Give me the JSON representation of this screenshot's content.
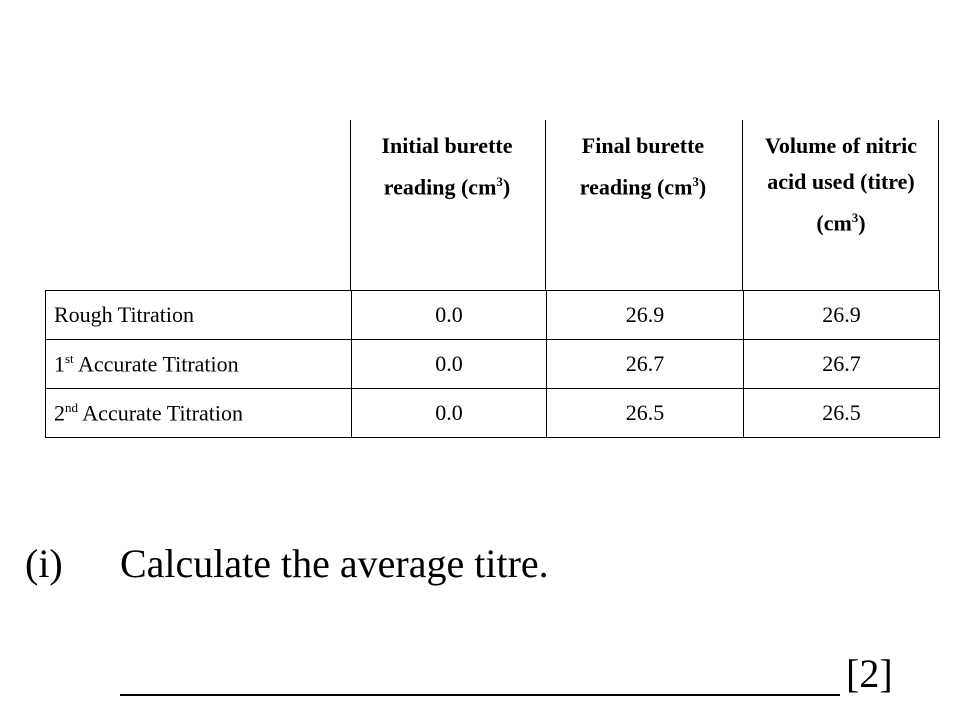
{
  "table": {
    "headers": [
      {
        "text": "Initial burette reading (cm",
        "sup": "3",
        "tail": ")"
      },
      {
        "text": "Final burette reading (cm",
        "sup": "3",
        "tail": ")"
      },
      {
        "text": "Volume of nitric acid used (titre) (cm",
        "sup": "3",
        "tail": ")"
      }
    ],
    "rows": [
      {
        "label": "Rough Titration",
        "cells": [
          "0.0",
          "26.9",
          "26.9"
        ]
      },
      {
        "ordinal": "1",
        "suffix": "st",
        "label": "Accurate Titration",
        "cells": [
          "0.0",
          "26.7",
          "26.7"
        ]
      },
      {
        "ordinal": "2",
        "suffix": "nd",
        "label": "Accurate Titration",
        "cells": [
          "0.0",
          "26.5",
          "26.5"
        ]
      }
    ]
  },
  "question": {
    "number": "(i)",
    "text": "Calculate the average titre.",
    "marks": "[2]"
  }
}
